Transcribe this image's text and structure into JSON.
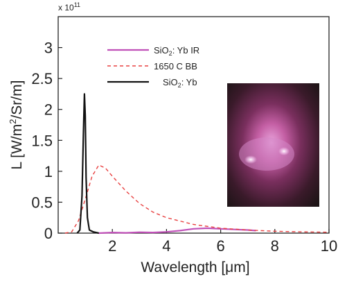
{
  "chart_data": {
    "type": "line",
    "title": "",
    "xlabel": "Wavelength [μm]",
    "ylabel_parts": [
      "L [W/m",
      "2",
      "/Sr/m]"
    ],
    "y_multiplier": "x 10",
    "y_multiplier_exp": "11",
    "xlim": [
      0,
      10
    ],
    "ylim": [
      0,
      3.5
    ],
    "xticks": [
      2,
      4,
      6,
      8,
      10
    ],
    "yticks": [
      0,
      0.5,
      1,
      1.5,
      2,
      2.5,
      3
    ],
    "ytick_labels": [
      "0",
      "0.5",
      "1",
      "1.5",
      "2",
      "2.5",
      "3"
    ],
    "grid": false,
    "legend_position": "top-center",
    "series": [
      {
        "legend_parts": [
          "SiO",
          "2",
          ": Yb IR"
        ],
        "color": "#c050b8",
        "style": "solid",
        "x": [
          1.5,
          2.0,
          2.5,
          3.0,
          3.5,
          4.0,
          4.5,
          5.0,
          5.5,
          6.0,
          6.5,
          7.0,
          7.3
        ],
        "y": [
          0.0,
          0.01,
          0.005,
          0.015,
          0.01,
          0.02,
          0.04,
          0.07,
          0.08,
          0.07,
          0.06,
          0.05,
          0.04
        ]
      },
      {
        "legend_parts": [
          "1650 C BB"
        ],
        "color": "#e84040",
        "style": "dashed",
        "x": [
          0.25,
          0.5,
          0.75,
          1.0,
          1.25,
          1.5,
          1.75,
          2.0,
          2.5,
          3.0,
          3.5,
          4.0,
          5.0,
          6.0,
          7.0,
          8.0,
          9.0,
          10.0
        ],
        "y": [
          0.0,
          0.02,
          0.2,
          0.55,
          0.92,
          1.1,
          1.05,
          0.92,
          0.68,
          0.48,
          0.34,
          0.25,
          0.14,
          0.08,
          0.05,
          0.03,
          0.02,
          0.015
        ]
      },
      {
        "legend_parts": [
          "SiO",
          "2",
          ": Yb"
        ],
        "color": "#111111",
        "style": "solid",
        "x": [
          0.7,
          0.8,
          0.88,
          0.93,
          0.97,
          1.0,
          1.03,
          1.08,
          1.15,
          1.3,
          1.5
        ],
        "y": [
          0.0,
          0.05,
          0.6,
          1.6,
          2.25,
          1.9,
          0.9,
          0.25,
          0.05,
          0.02,
          0.0
        ]
      }
    ]
  }
}
